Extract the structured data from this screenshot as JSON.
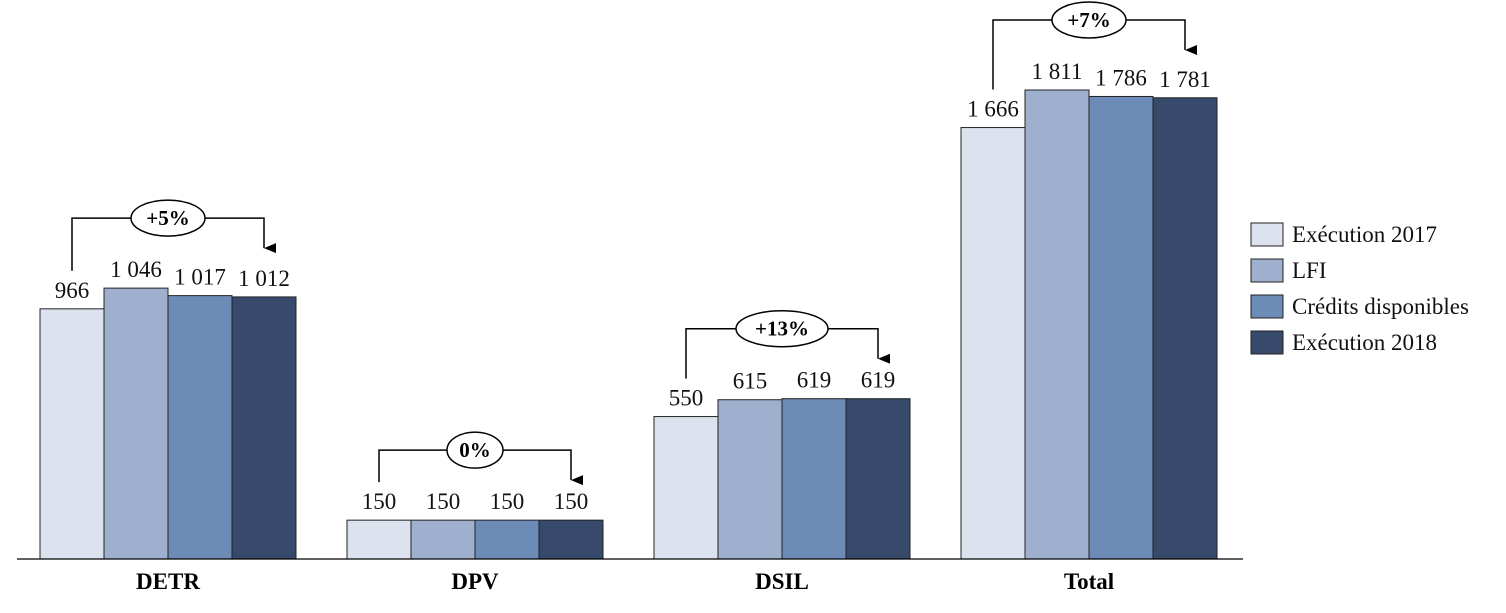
{
  "chart_data": {
    "type": "bar",
    "categories": [
      "DETR",
      "DPV",
      "DSIL",
      "Total"
    ],
    "series": [
      {
        "name": "Exécution 2017",
        "color": "#dde3ee",
        "values": [
          966,
          150,
          550,
          1666
        ],
        "labels": [
          "966",
          "150",
          "550",
          "1 666"
        ]
      },
      {
        "name": "LFI",
        "color": "#9fb0cf",
        "values": [
          1046,
          150,
          615,
          1811
        ],
        "labels": [
          "1 046",
          "150",
          "615",
          "1 811"
        ]
      },
      {
        "name": "Crédits disponibles",
        "color": "#6d8bb7",
        "values": [
          1017,
          150,
          619,
          1786
        ],
        "labels": [
          "1 017",
          "150",
          "619",
          "1 786"
        ]
      },
      {
        "name": "Exécution 2018",
        "color": "#374a6b",
        "values": [
          1012,
          150,
          619,
          1781
        ],
        "labels": [
          "1 012",
          "150",
          "619",
          "1 781"
        ]
      }
    ],
    "annotations": [
      "+5%",
      "0%",
      "+13%",
      "+7%"
    ],
    "ylim": [
      0,
      1811
    ],
    "grid": false,
    "legend_position": "right",
    "title": "",
    "xlabel": "",
    "ylabel": ""
  }
}
